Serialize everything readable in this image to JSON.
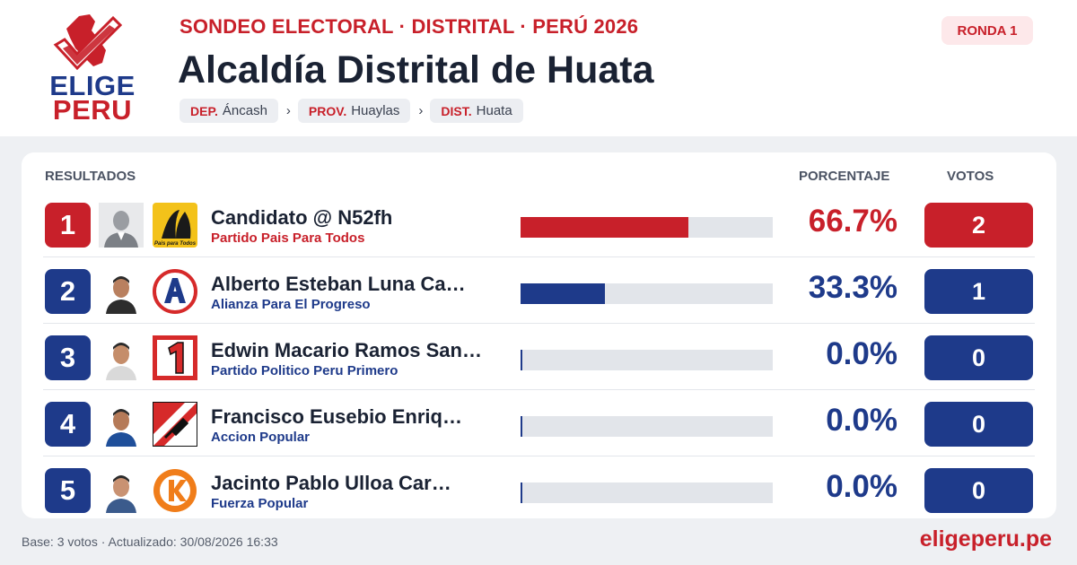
{
  "brand": {
    "logo_line1": "ELIGE",
    "logo_line2": "PERU",
    "site": "eligeperu.pe"
  },
  "header": {
    "kicker": "SONDEO ELECTORAL · DISTRITAL · PERÚ 2026",
    "title": "Alcaldía Distrital de Huata",
    "round": "RONDA 1",
    "breadcrumb": [
      {
        "key": "DEP.",
        "value": "Áncash"
      },
      {
        "key": "PROV.",
        "value": "Huaylas"
      },
      {
        "key": "DIST.",
        "value": "Huata"
      }
    ],
    "separator": "›"
  },
  "results": {
    "heading": "RESULTADOS",
    "col_percent": "PORCENTAJE",
    "col_votes": "VOTOS",
    "rows": [
      {
        "rank": "1",
        "name": "Candidato @ N52fh",
        "party": "Partido Pais Para Todos",
        "percent": "66.7%",
        "share": 0.667,
        "votes": "2",
        "photo_icon": "placeholder-person-icon",
        "party_icon": "pais-para-todos-logo-icon",
        "party_logo_text": "Pais para Todos"
      },
      {
        "rank": "2",
        "name": "Alberto Esteban Luna Ca…",
        "party": "Alianza Para El Progreso",
        "percent": "33.3%",
        "share": 0.333,
        "votes": "1",
        "photo_icon": "candidate-photo-icon",
        "party_icon": "alianza-para-el-progreso-logo-icon"
      },
      {
        "rank": "3",
        "name": "Edwin Macario Ramos San…",
        "party": "Partido Politico Peru Primero",
        "percent": "0.0%",
        "share": 0.0,
        "votes": "0",
        "photo_icon": "candidate-photo-icon",
        "party_icon": "peru-primero-logo-icon"
      },
      {
        "rank": "4",
        "name": "Francisco Eusebio Enriq…",
        "party": "Accion Popular",
        "percent": "0.0%",
        "share": 0.0,
        "votes": "0",
        "photo_icon": "candidate-photo-icon",
        "party_icon": "accion-popular-logo-icon"
      },
      {
        "rank": "5",
        "name": "Jacinto Pablo Ulloa Car…",
        "party": "Fuerza Popular",
        "percent": "0.0%",
        "share": 0.0,
        "votes": "0",
        "photo_icon": "candidate-photo-icon",
        "party_icon": "fuerza-popular-logo-icon"
      }
    ]
  },
  "footer": {
    "meta": "Base: 3 votos · Actualizado: 30/08/2026 16:33"
  },
  "colors": {
    "leader": "#c8202a",
    "others": "#1e3a8a",
    "track": "#e2e5ea"
  }
}
